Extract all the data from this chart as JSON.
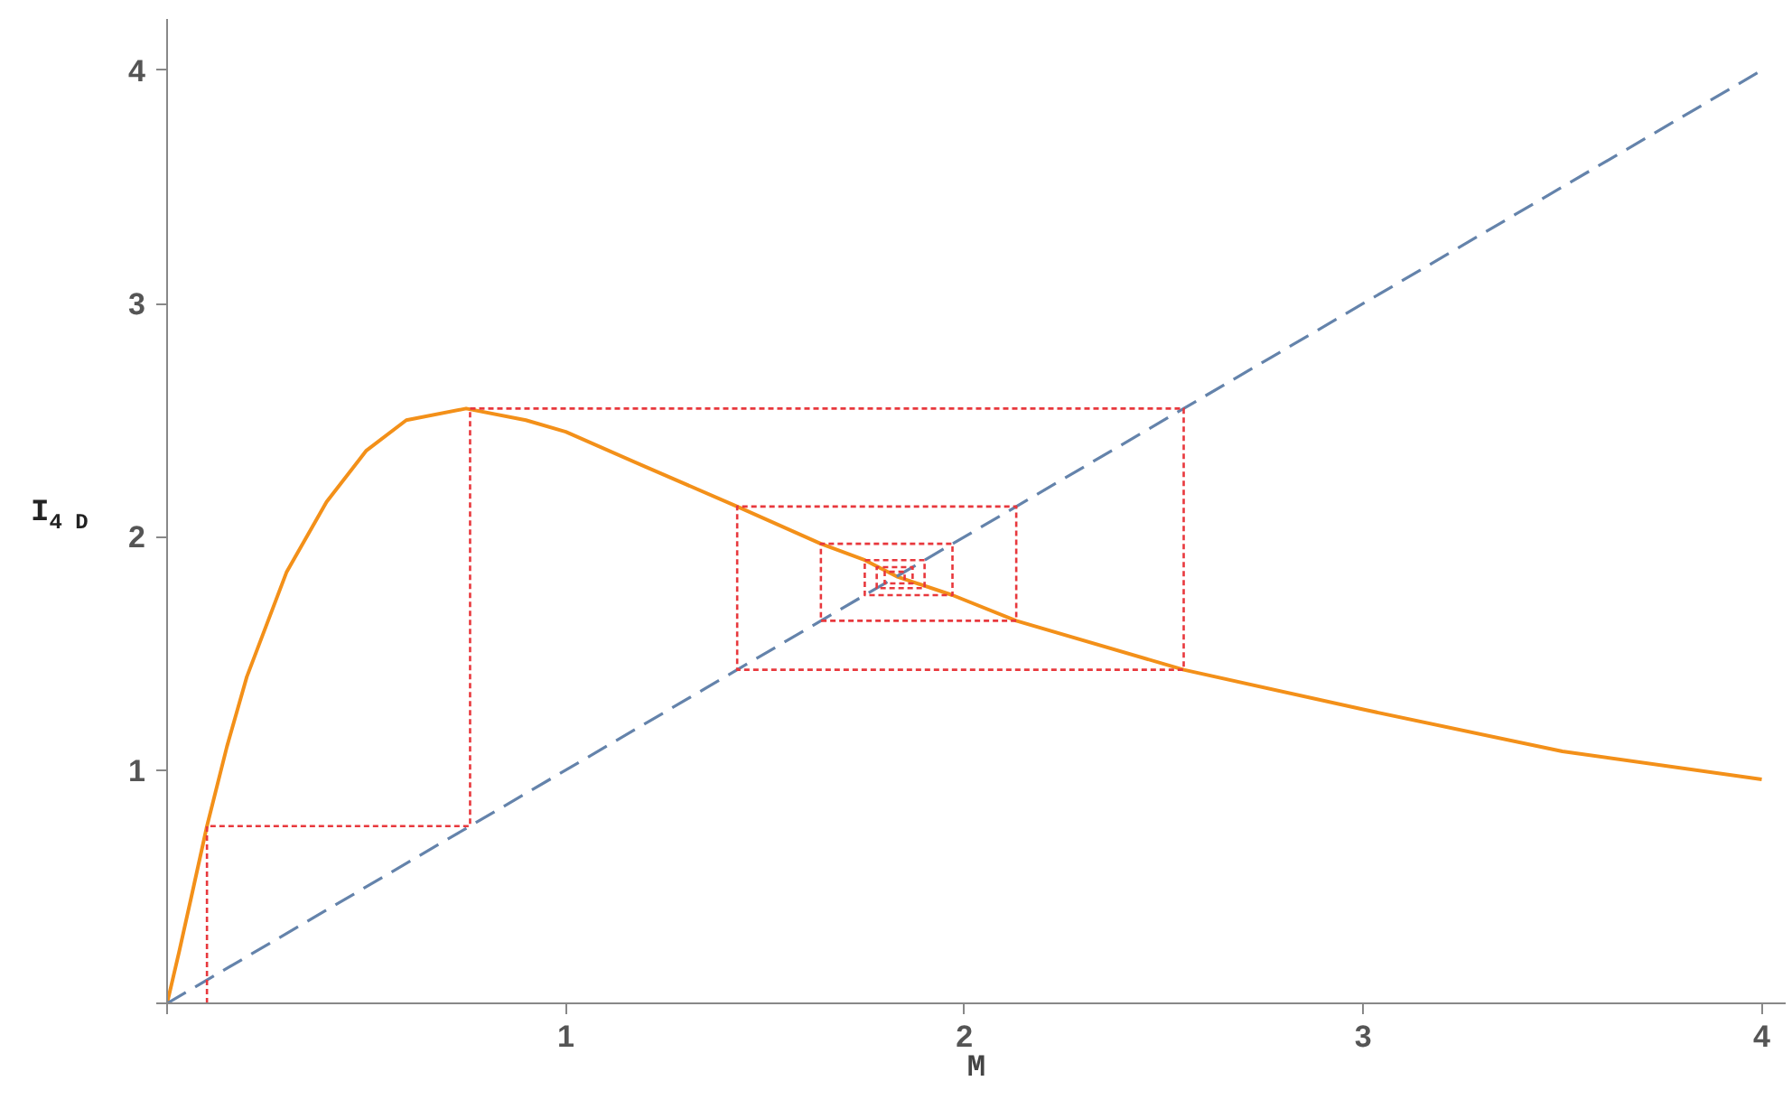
{
  "chart_data": {
    "type": "line",
    "xlabel": "M",
    "ylabel": "I$_{4 D}$",
    "xlim": [
      0,
      4.06
    ],
    "ylim": [
      0,
      4.22
    ],
    "xticks": [
      {
        "value": 0,
        "label": null
      },
      1,
      2,
      3,
      4
    ],
    "yticks": [
      {
        "value": 0,
        "label": null
      },
      1,
      2,
      3,
      4
    ],
    "grid": false,
    "series": [
      {
        "type": "line",
        "line_style": "solid",
        "color": "#f39019",
        "x": [
          0,
          0.03,
          0.06,
          0.1,
          0.15,
          0.2,
          0.3,
          0.4,
          0.5,
          0.6,
          0.75,
          0.9,
          1.0,
          1.2,
          1.43,
          1.64,
          1.75,
          1.83,
          1.97,
          2.13,
          2.55,
          3.0,
          3.5,
          4.0
        ],
        "values": [
          0,
          0.22,
          0.45,
          0.76,
          1.1,
          1.4,
          1.85,
          2.15,
          2.37,
          2.5,
          2.55,
          2.5,
          2.45,
          2.3,
          2.13,
          1.97,
          1.9,
          1.83,
          1.75,
          1.64,
          1.43,
          1.26,
          1.08,
          0.96
        ]
      },
      {
        "type": "line",
        "line_style": "dashed",
        "color": "#6483ab",
        "x": [
          0,
          4
        ],
        "values": [
          0,
          4
        ]
      },
      {
        "type": "line",
        "line_style": "dotted",
        "color": "#e8383d",
        "x": [
          0.1,
          0.1,
          0.76,
          0.76,
          2.55,
          2.55,
          1.43,
          1.43,
          2.13,
          2.13,
          1.64,
          1.64,
          1.97,
          1.97,
          1.75,
          1.75,
          1.9,
          1.9,
          1.78,
          1.78,
          1.87,
          1.87,
          1.8,
          1.8,
          1.85,
          1.85
        ],
        "values": [
          0,
          0.76,
          0.76,
          2.55,
          2.55,
          1.43,
          1.43,
          2.13,
          2.13,
          1.64,
          1.64,
          1.97,
          1.97,
          1.75,
          1.75,
          1.9,
          1.9,
          1.78,
          1.78,
          1.87,
          1.87,
          1.8,
          1.8,
          1.85,
          1.85,
          1.81
        ]
      }
    ]
  }
}
